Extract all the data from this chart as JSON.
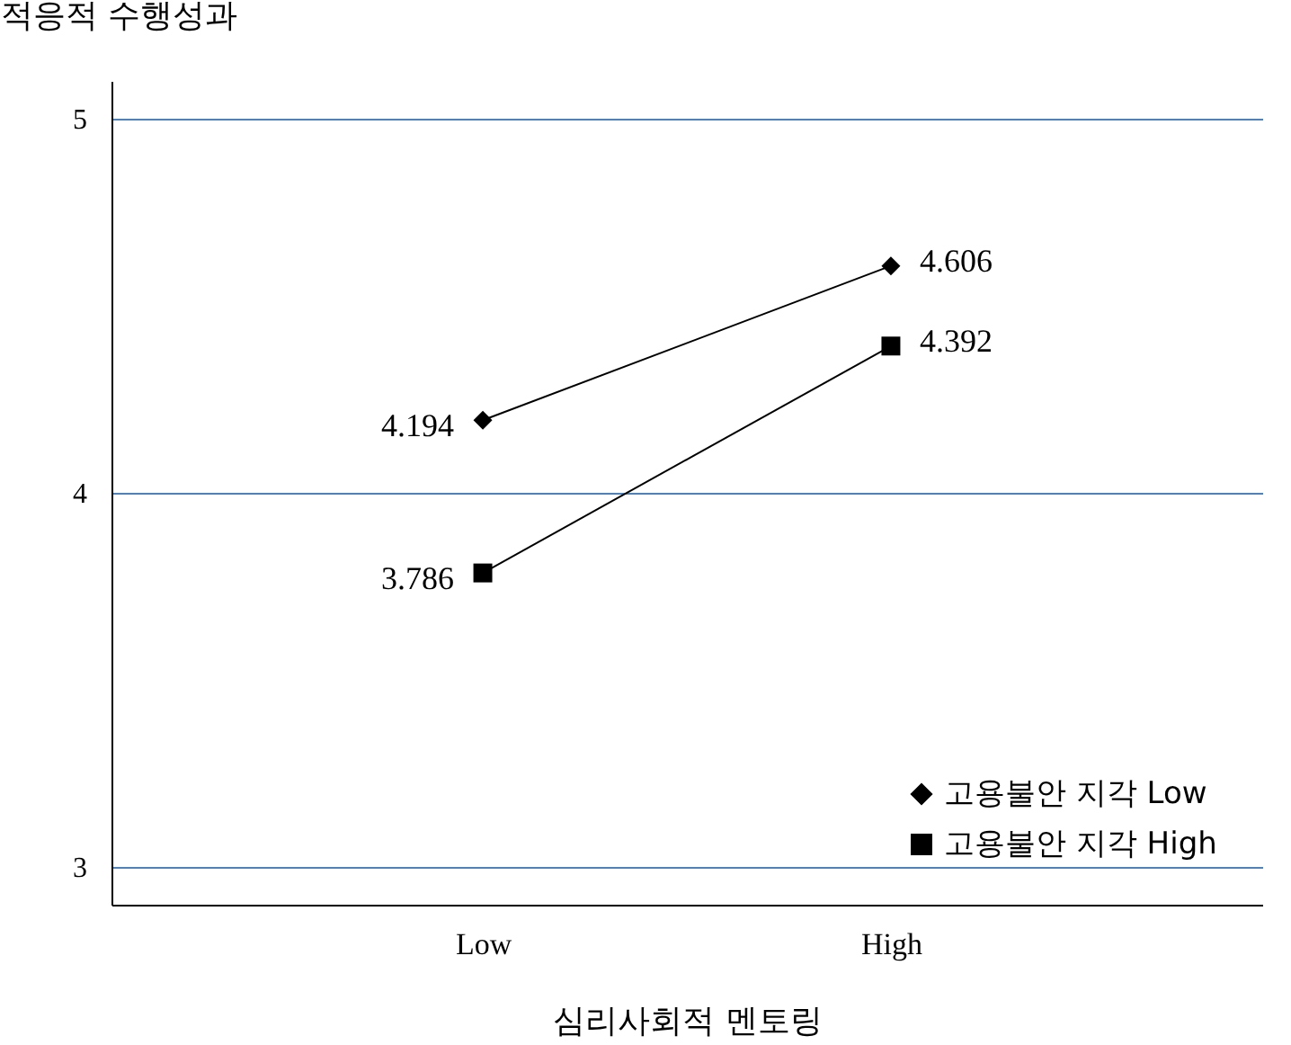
{
  "chart_data": {
    "type": "line",
    "ylabel": "적응적 수행성과",
    "xlabel": "심리사회적 멘토링",
    "categories": [
      "Low",
      "High"
    ],
    "series": [
      {
        "name": "고용불안 지각 Low",
        "color": "#000000",
        "marker": "diamond",
        "values": [
          4.194,
          4.606
        ]
      },
      {
        "name": "고용불안 지각 High",
        "color": "#000000",
        "marker": "square",
        "values": [
          3.786,
          4.392
        ]
      }
    ],
    "ylim": [
      2.9,
      5.1
    ],
    "yticks": [
      3,
      4,
      5
    ],
    "grid": "y",
    "legend": "bottom right",
    "data_labels": true
  }
}
